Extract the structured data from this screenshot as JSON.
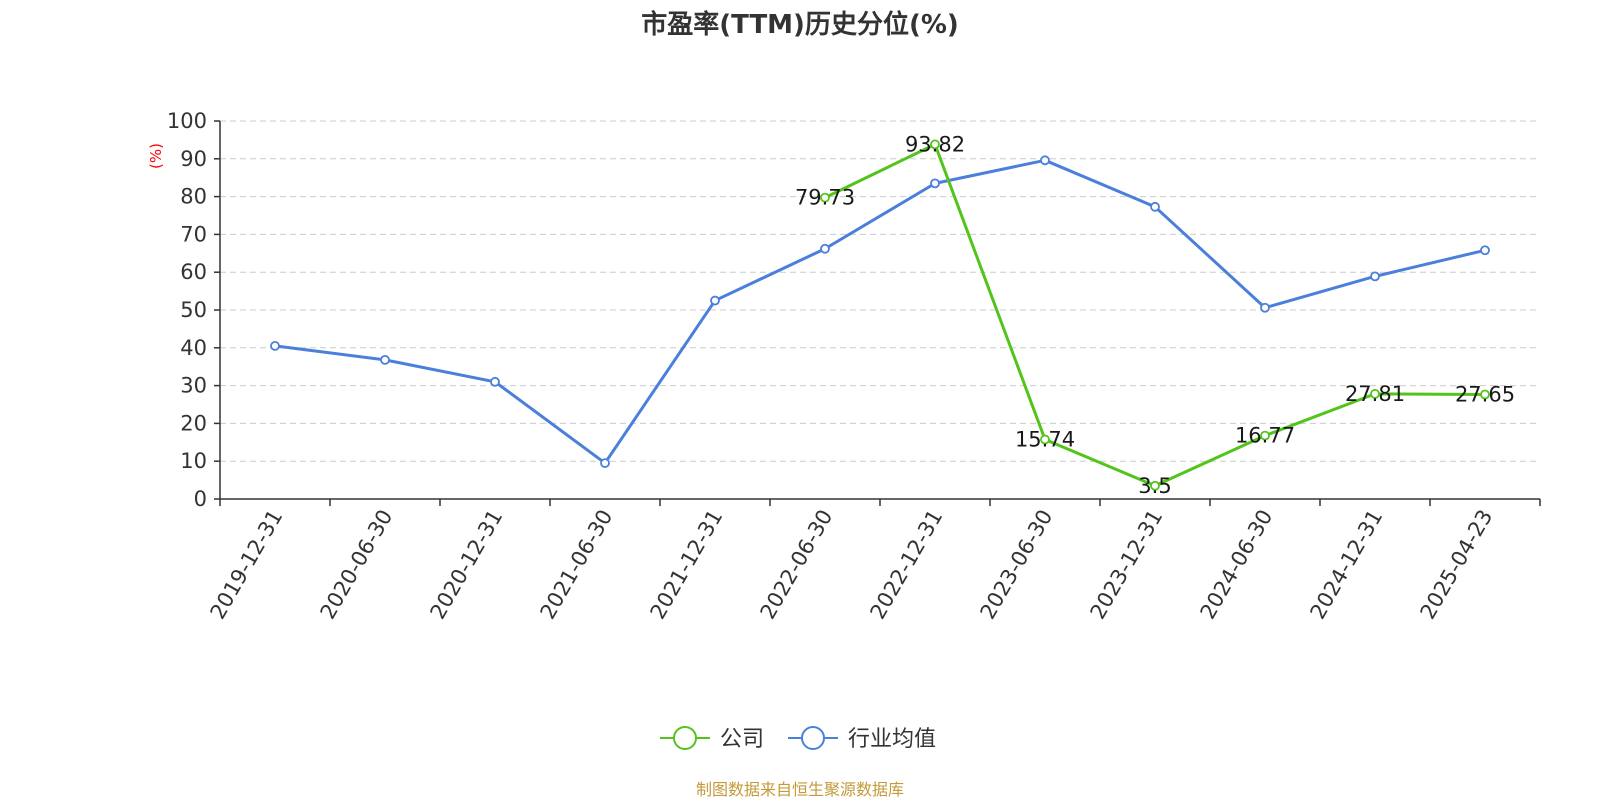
{
  "chart_data": {
    "type": "line",
    "title": "市盈率(TTM)历史分位(%)",
    "y_unit": "(%)",
    "ylim": [
      0,
      100
    ],
    "yticks": [
      0,
      10,
      20,
      30,
      40,
      50,
      60,
      70,
      80,
      90,
      100
    ],
    "grid": true,
    "legend_position": "bottom-center",
    "categories": [
      "2019-12-31",
      "2020-06-30",
      "2020-12-31",
      "2021-06-30",
      "2021-12-31",
      "2022-06-30",
      "2022-12-31",
      "2023-06-30",
      "2023-12-31",
      "2024-06-30",
      "2024-12-31",
      "2025-04-23"
    ],
    "series": [
      {
        "name": "公司",
        "color": "#52c41a",
        "show_labels": true,
        "values": [
          null,
          null,
          null,
          null,
          null,
          79.73,
          93.82,
          15.74,
          3.5,
          16.77,
          27.81,
          27.65
        ]
      },
      {
        "name": "行业均值",
        "color": "#4a7fdb",
        "show_labels": false,
        "values": [
          40.5,
          36.8,
          31.0,
          9.5,
          52.5,
          66.2,
          83.5,
          89.6,
          77.3,
          50.6,
          58.9,
          65.8
        ]
      }
    ],
    "source": "制图数据来自恒生聚源数据库"
  }
}
